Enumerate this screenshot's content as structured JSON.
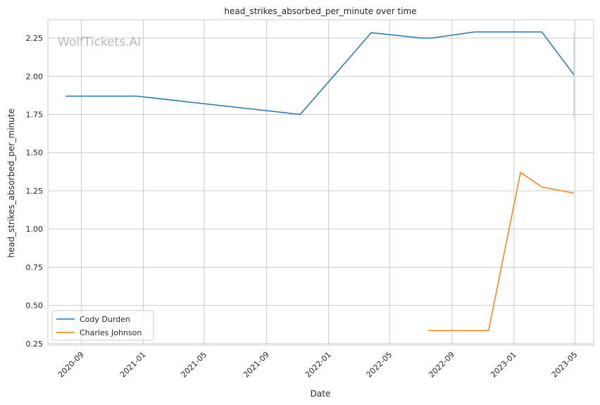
{
  "chart_data": {
    "type": "line",
    "title": "head_strikes_absorbed_per_minute over time",
    "xlabel": "Date",
    "ylabel": "head_strikes_absorbed_per_minute",
    "watermark": "WolfTickets.AI",
    "x_ticks": [
      "2020-09",
      "2021-01",
      "2021-05",
      "2021-09",
      "2022-01",
      "2022-05",
      "2022-09",
      "2023-01",
      "2023-05"
    ],
    "y_ticks": [
      "0.25",
      "0.50",
      "0.75",
      "1.00",
      "1.25",
      "1.50",
      "1.75",
      "2.00",
      "2.25"
    ],
    "xlim": [
      "2020-06-27",
      "2023-06-07"
    ],
    "ylim": [
      0.24,
      2.37
    ],
    "grid": true,
    "legend_placement": "lower-left",
    "series": [
      {
        "name": "Cody Durden",
        "color": "#1f77b4",
        "points": [
          {
            "x": "2020-08-01",
            "y": 1.87
          },
          {
            "x": "2020-12-19",
            "y": 1.87
          },
          {
            "x": "2021-11-06",
            "y": 1.75
          },
          {
            "x": "2022-03-26",
            "y": 2.285
          },
          {
            "x": "2022-07-02",
            "y": 2.25
          },
          {
            "x": "2022-07-23",
            "y": 2.25
          },
          {
            "x": "2022-10-15",
            "y": 2.29
          },
          {
            "x": "2023-02-25",
            "y": 2.29
          },
          {
            "x": "2023-04-29",
            "y": 2.01
          }
        ]
      },
      {
        "name": "Charles Johnson",
        "color": "#ff7f0e",
        "points": [
          {
            "x": "2022-07-16",
            "y": 0.335
          },
          {
            "x": "2022-11-12",
            "y": 0.335
          },
          {
            "x": "2023-01-14",
            "y": 1.37
          },
          {
            "x": "2023-02-25",
            "y": 1.275
          },
          {
            "x": "2023-04-29",
            "y": 1.235
          }
        ]
      }
    ],
    "error_bar": {
      "x": "2023-04-29",
      "y_low": 1.73,
      "y_high": 2.29,
      "color": "#1f77b4"
    }
  }
}
